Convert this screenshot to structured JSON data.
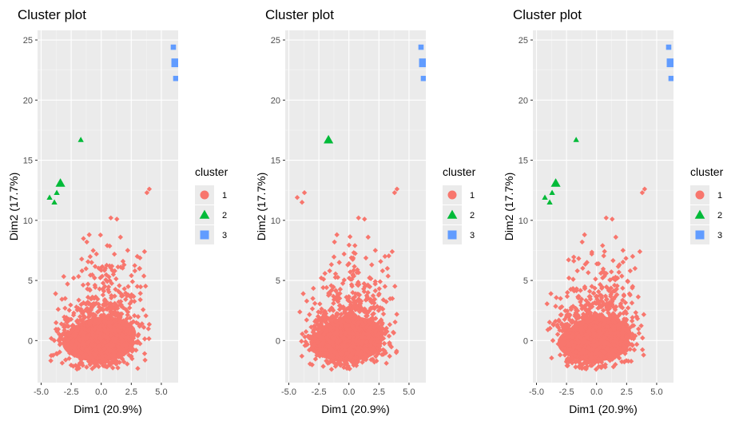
{
  "chart_data": [
    {
      "type": "scatter",
      "title": "Cluster plot",
      "xlabel": "Dim1 (20.9%)",
      "ylabel": "Dim2 (17.7%)",
      "xlim": [
        -5.3,
        6.4
      ],
      "ylim": [
        -3.5,
        25.8
      ],
      "xticks": [
        -5.0,
        -2.5,
        0.0,
        2.5,
        5.0
      ],
      "xtick_labels": [
        "-5.0",
        "-2.5",
        "0.0",
        "2.5",
        "5.0"
      ],
      "yticks": [
        0,
        5,
        10,
        15,
        20,
        25
      ],
      "ytick_labels": [
        "0",
        "5",
        "10",
        "15",
        "20",
        "25"
      ],
      "grid": true,
      "legend": {
        "title": "cluster",
        "position": "right",
        "entries": [
          "1",
          "2",
          "3"
        ]
      },
      "series": [
        {
          "name": "1",
          "color": "#F8766D",
          "shape": "diamond",
          "points": [
            [
              3.8,
              12.3
            ],
            [
              4.0,
              12.6
            ],
            [
              0.8,
              10.2
            ],
            [
              1.3,
              10.1
            ],
            [
              -1.0,
              8.8
            ],
            [
              -1.2,
              8.2
            ],
            [
              1.6,
              8.6
            ],
            [
              2.2,
              7.5
            ],
            [
              -0.4,
              7.2
            ],
            [
              0.5,
              7.9
            ],
            [
              3.0,
              7.0
            ],
            [
              3.6,
              7.4
            ],
            [
              -0.8,
              6.5
            ],
            [
              1.9,
              6.3
            ],
            [
              2.8,
              5.8
            ],
            [
              3.2,
              6.0
            ],
            [
              -2.3,
              5.2
            ],
            [
              -1.6,
              5.8
            ],
            [
              2.6,
              4.9
            ],
            [
              3.0,
              4.5
            ],
            [
              -3.8,
              3.9
            ],
            [
              -3.0,
              3.5
            ]
          ],
          "point_clusters": [
            {
              "center": [
                -0.2,
                -0.2
              ],
              "rx": 3.2,
              "ry": 1.7,
              "note_count": 0
            }
          ]
        },
        {
          "name": "2",
          "color": "#00BA38",
          "shape": "triangle",
          "points": [
            [
              -1.7,
              16.7
            ],
            [
              -3.4,
              13.1
            ],
            [
              -4.3,
              11.9
            ],
            [
              -3.9,
              11.5
            ],
            [
              -3.7,
              12.3
            ]
          ],
          "sizes": [
            1,
            2,
            1,
            1,
            1
          ]
        },
        {
          "name": "3",
          "color": "#619CFF",
          "shape": "square",
          "points": [
            [
              6.0,
              24.4
            ],
            [
              6.2,
              23.1
            ],
            [
              6.2,
              21.8
            ]
          ],
          "sizes": [
            1,
            2,
            1
          ]
        }
      ]
    },
    {
      "type": "scatter",
      "title": "Cluster plot",
      "xlabel": "Dim1 (20.9%)",
      "ylabel": "Dim2 (17.7%)",
      "xlim": [
        -5.3,
        6.4
      ],
      "ylim": [
        -3.5,
        25.8
      ],
      "xticks": [
        -5.0,
        -2.5,
        0.0,
        2.5,
        5.0
      ],
      "xtick_labels": [
        "-5.0",
        "-2.5",
        "0.0",
        "2.5",
        "5.0"
      ],
      "yticks": [
        0,
        5,
        10,
        15,
        20,
        25
      ],
      "ytick_labels": [
        "0",
        "5",
        "10",
        "15",
        "20",
        "25"
      ],
      "grid": true,
      "legend": {
        "title": "cluster",
        "position": "right",
        "entries": [
          "1",
          "2",
          "3"
        ]
      },
      "series": [
        {
          "name": "1",
          "color": "#F8766D",
          "shape": "diamond",
          "points": [
            [
              3.8,
              12.3
            ],
            [
              4.0,
              12.6
            ],
            [
              -4.3,
              11.9
            ],
            [
              -3.9,
              11.5
            ],
            [
              -3.7,
              12.3
            ],
            [
              0.8,
              10.2
            ],
            [
              1.3,
              10.1
            ],
            [
              -1.0,
              8.8
            ],
            [
              -1.2,
              8.2
            ],
            [
              1.6,
              8.6
            ],
            [
              2.2,
              7.5
            ],
            [
              -0.4,
              7.2
            ],
            [
              0.5,
              7.9
            ],
            [
              3.0,
              7.0
            ],
            [
              3.6,
              7.4
            ],
            [
              -0.8,
              6.5
            ],
            [
              1.9,
              6.3
            ],
            [
              2.8,
              5.8
            ],
            [
              3.2,
              6.0
            ],
            [
              -2.3,
              5.2
            ],
            [
              -1.6,
              5.8
            ],
            [
              2.6,
              4.9
            ],
            [
              3.0,
              4.5
            ],
            [
              -3.8,
              3.9
            ],
            [
              -3.0,
              3.5
            ]
          ]
        },
        {
          "name": "2",
          "color": "#00BA38",
          "shape": "triangle",
          "points": [
            [
              -1.7,
              16.7
            ]
          ],
          "sizes": [
            2
          ]
        },
        {
          "name": "3",
          "color": "#619CFF",
          "shape": "square",
          "points": [
            [
              6.0,
              24.4
            ],
            [
              6.2,
              23.1
            ],
            [
              6.2,
              21.8
            ]
          ],
          "sizes": [
            1,
            2,
            1
          ]
        }
      ]
    },
    {
      "type": "scatter",
      "title": "Cluster plot",
      "xlabel": "Dim1 (20.9%)",
      "ylabel": "Dim2 (17.7%)",
      "xlim": [
        -5.3,
        6.4
      ],
      "ylim": [
        -3.5,
        25.8
      ],
      "xticks": [
        -5.0,
        -2.5,
        0.0,
        2.5,
        5.0
      ],
      "xtick_labels": [
        "-5.0",
        "-2.5",
        "0.0",
        "2.5",
        "5.0"
      ],
      "yticks": [
        0,
        5,
        10,
        15,
        20,
        25
      ],
      "ytick_labels": [
        "0",
        "5",
        "10",
        "15",
        "20",
        "25"
      ],
      "grid": true,
      "legend": {
        "title": "cluster",
        "position": "right",
        "entries": [
          "1",
          "2",
          "3"
        ]
      },
      "series": [
        {
          "name": "1",
          "color": "#F8766D",
          "shape": "diamond",
          "points": [
            [
              3.8,
              12.3
            ],
            [
              4.0,
              12.6
            ],
            [
              0.8,
              10.2
            ],
            [
              1.3,
              10.1
            ],
            [
              -1.0,
              8.8
            ],
            [
              -1.2,
              8.2
            ],
            [
              1.6,
              8.6
            ],
            [
              2.2,
              7.5
            ],
            [
              -0.4,
              7.2
            ],
            [
              0.5,
              7.9
            ],
            [
              3.0,
              7.0
            ],
            [
              3.6,
              7.4
            ],
            [
              -0.8,
              6.5
            ],
            [
              1.9,
              6.3
            ],
            [
              2.8,
              5.8
            ],
            [
              3.2,
              6.0
            ],
            [
              -2.3,
              5.2
            ],
            [
              -1.6,
              5.8
            ],
            [
              2.6,
              4.9
            ],
            [
              3.0,
              4.5
            ],
            [
              -3.8,
              3.9
            ],
            [
              -3.0,
              3.5
            ]
          ]
        },
        {
          "name": "2",
          "color": "#00BA38",
          "shape": "triangle",
          "points": [
            [
              -1.7,
              16.7
            ],
            [
              -3.4,
              13.1
            ],
            [
              -4.3,
              11.9
            ],
            [
              -3.9,
              11.5
            ],
            [
              -3.7,
              12.3
            ]
          ],
          "sizes": [
            1,
            2,
            1,
            1,
            1
          ]
        },
        {
          "name": "3",
          "color": "#619CFF",
          "shape": "square",
          "points": [
            [
              6.0,
              24.4
            ],
            [
              6.2,
              23.1
            ],
            [
              6.2,
              21.8
            ]
          ],
          "sizes": [
            1,
            2,
            1
          ]
        }
      ]
    }
  ]
}
